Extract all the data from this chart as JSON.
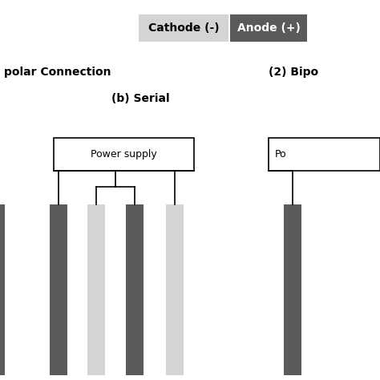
{
  "legend_cathode_label": "Cathode (-)",
  "legend_anode_label": "Anode (+)",
  "cathode_color": "#d4d4d4",
  "anode_color": "#5a5a5a",
  "subtitle_b": "(b) Serial",
  "title_right": "(2) Bipo",
  "monopolar_label": "polar Connection",
  "power_supply_label": "Power supply",
  "background_color": "#ffffff",
  "cathode_text_color": "#000000",
  "anode_text_color": "#ffffff",
  "fig_width": 4.74,
  "fig_height": 4.74
}
